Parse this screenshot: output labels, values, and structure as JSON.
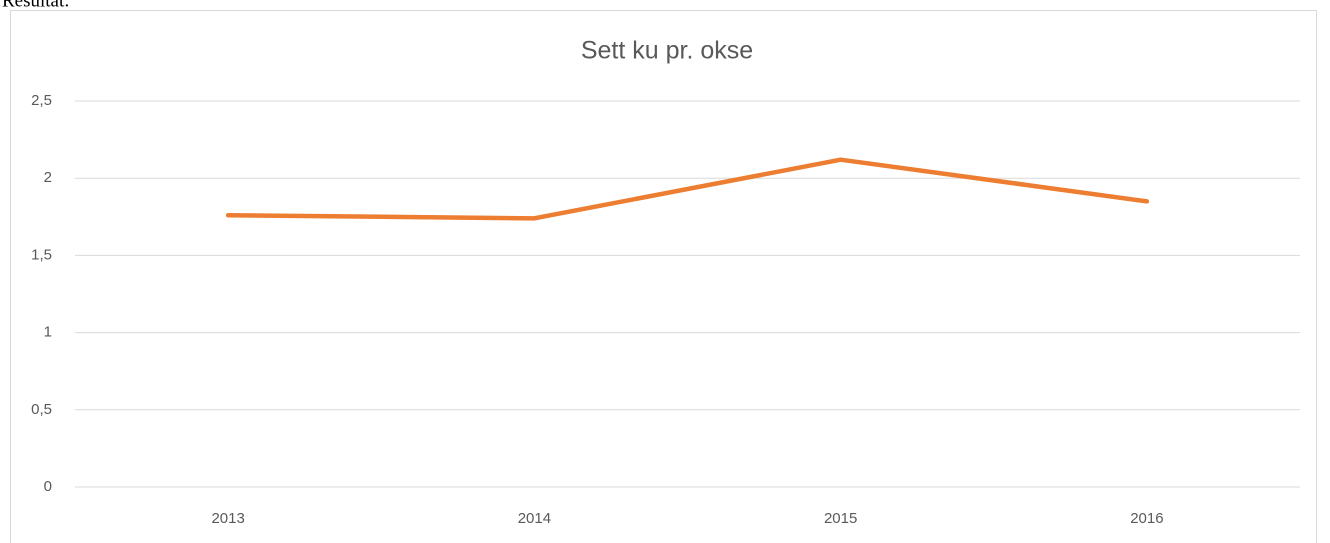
{
  "caption": "Resultat:",
  "chart_data": {
    "type": "line",
    "title": "Sett ku pr. okse",
    "categories": [
      "2013",
      "2014",
      "2015",
      "2016"
    ],
    "series": [
      {
        "name": "Sett ku pr. okse",
        "color": "#ed7d31",
        "values": [
          1.76,
          1.74,
          2.12,
          1.85
        ]
      }
    ],
    "ylim": [
      0,
      2.5
    ],
    "yticks": [
      0,
      {
        "value": 0.5,
        "label": "0,5"
      },
      1,
      {
        "value": 1.5,
        "label": "1,5"
      },
      2,
      {
        "value": 2.5,
        "label": "2,5"
      }
    ],
    "grid": true
  }
}
